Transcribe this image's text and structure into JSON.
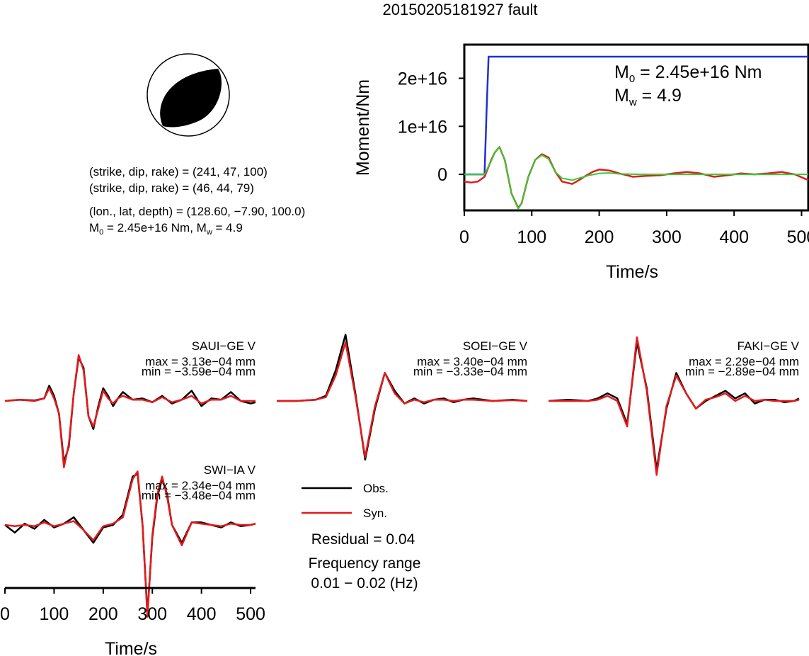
{
  "title": "20150205181927 fault",
  "mechanism": {
    "plane1": "(strike, dip, rake) = (241, 47, 100)",
    "plane2": "(strike, dip, rake) = (46, 44, 79)",
    "location": "(lon., lat, depth) = (128.60, −7.90, 100.0)",
    "m0_prefix": "M",
    "m0_sub": "0",
    "m0_mid": " = 2.45e+16 Nm, M",
    "mw_sub": "w",
    "mw_suffix": " = 4.9"
  },
  "moment_panel": {
    "m0_label": "M",
    "m0_sub": "0",
    "m0_value": " = 2.45e+16 Nm",
    "mw_label": "M",
    "mw_sub": "w",
    "mw_value": " = 4.9"
  },
  "legend": {
    "obs": "Obs.",
    "syn": "Syn.",
    "residual": "Residual = 0.04",
    "freq_title": "Frequency range",
    "freq_value": "0.01 − 0.02 (Hz)"
  },
  "colors": {
    "observed": "#000000",
    "synthetic": "#e41a1c",
    "stf": "#1f2fd6",
    "moment_synthetic": "#33cc33"
  },
  "chart_data": [
    {
      "type": "line",
      "name": "moment-rate",
      "xlabel": "Time/s",
      "ylabel": "Moment/Nm",
      "xlim": [
        0,
        510
      ],
      "ylim": [
        -7500000000000000.0,
        2.7e+16
      ],
      "xticks": [
        0,
        100,
        200,
        300,
        400,
        500
      ],
      "xtick_labels": [
        "0",
        "100",
        "200",
        "300",
        "400",
        "500"
      ],
      "yticks": [
        0,
        1e+16,
        2e+16
      ],
      "ytick_labels": [
        "0",
        "1e+16",
        "2e+16"
      ],
      "grid": false,
      "series": [
        {
          "role": "stf",
          "color": "#1f2fd6",
          "x": [
            0,
            30,
            33,
            36,
            40,
            510
          ],
          "y": [
            0,
            0,
            1.3e+16,
            2.45e+16,
            2.45e+16,
            2.45e+16
          ]
        },
        {
          "role": "observed",
          "color": "#e41a1c",
          "x": [
            0,
            10,
            20,
            30,
            40,
            45,
            52,
            60,
            70,
            80,
            85,
            95,
            105,
            115,
            125,
            135,
            145,
            160,
            170,
            180,
            190,
            200,
            215,
            230,
            250,
            270,
            290,
            310,
            330,
            350,
            370,
            390,
            410,
            430,
            450,
            470,
            490,
            510
          ],
          "y": [
            -1500000000000000.0,
            -1700000000000000.0,
            -1500000000000000.0,
            -500000000000000.0,
            3000000000000000.0,
            4500000000000000.0,
            5700000000000000.0,
            3000000000000000.0,
            -4000000000000000.0,
            -7000000000000000.0,
            -6000000000000000.0,
            -500000000000000.0,
            3000000000000000.0,
            4200000000000000.0,
            3500000000000000.0,
            500000000000000.0,
            -1500000000000000.0,
            -2000000000000000.0,
            -1200000000000000.0,
            -300000000000000.0,
            500000000000000.0,
            1000000000000000.0,
            800000000000000.0,
            200000000000000.0,
            -500000000000000.0,
            -300000000000000.0,
            -200000000000000.0,
            200000000000000.0,
            500000000000000.0,
            200000000000000.0,
            -500000000000000.0,
            -200000000000000.0,
            200000000000000.0,
            0.0,
            200000000000000.0,
            500000000000000.0,
            0.0,
            -1200000000000000.0
          ]
        },
        {
          "role": "synthetic",
          "color": "#33cc33",
          "x": [
            0,
            30,
            40,
            45,
            52,
            60,
            70,
            80,
            85,
            95,
            105,
            115,
            125,
            135,
            145,
            160,
            170,
            185,
            200,
            215,
            230,
            260,
            300,
            350,
            400,
            450,
            510
          ],
          "y": [
            0,
            0,
            2800000000000000.0,
            4500000000000000.0,
            5700000000000000.0,
            3000000000000000.0,
            -4000000000000000.0,
            -7200000000000000.0,
            -6000000000000000.0,
            -500000000000000.0,
            3000000000000000.0,
            4000000000000000.0,
            3200000000000000.0,
            500000000000000.0,
            -800000000000000.0,
            -1200000000000000.0,
            -800000000000000.0,
            -200000000000000.0,
            200000000000000.0,
            300000000000000.0,
            100000000000000.0,
            0.0,
            0.0,
            0.0,
            0.0,
            0.0,
            0.0
          ]
        }
      ]
    },
    {
      "type": "line",
      "name": "waveforms",
      "xlabel": "Time/s",
      "xlim": [
        0,
        510
      ],
      "xticks": [
        0,
        100,
        200,
        300,
        400,
        500
      ],
      "xtick_labels": [
        "0",
        "100",
        "200",
        "300",
        "400",
        "500"
      ],
      "stations": [
        {
          "name": "SAUI−GE V",
          "max": "max = 3.13e−04 mm",
          "min": "min = −3.59e−04 mm",
          "obs": {
            "t": [
              0,
              30,
              60,
              80,
              90,
              100,
              110,
              120,
              130,
              140,
              150,
              160,
              170,
              180,
              190,
              200,
              210,
              220,
              230,
              240,
              260,
              280,
              300,
              320,
              340,
              360,
              380,
              400,
              420,
              440,
              460,
              480,
              500,
              510
            ],
            "a": [
              0,
              0.05,
              0.02,
              0.1,
              0.6,
              0.2,
              -0.5,
              -2.4,
              -1.8,
              0.3,
              1.7,
              1.3,
              -0.6,
              -1.1,
              -0.2,
              0.5,
              0.2,
              -0.2,
              0.1,
              0.35,
              0.05,
              0.1,
              -0.05,
              0.2,
              -0.1,
              0.05,
              0.4,
              -0.2,
              0.1,
              0.05,
              0.35,
              0.0,
              -0.1,
              -0.05
            ]
          },
          "syn": {
            "t": [
              0,
              30,
              60,
              80,
              90,
              100,
              110,
              120,
              130,
              140,
              150,
              160,
              170,
              180,
              190,
              200,
              210,
              220,
              230,
              240,
              260,
              280,
              300,
              320,
              340,
              360,
              380,
              400,
              420,
              440,
              460,
              480,
              500,
              510
            ],
            "a": [
              0,
              0.05,
              0.0,
              0.1,
              0.5,
              0.1,
              -0.5,
              -2.6,
              -1.7,
              0.3,
              1.8,
              1.2,
              -0.6,
              -1.0,
              -0.3,
              0.4,
              0.1,
              -0.1,
              0.1,
              0.2,
              0.05,
              0.05,
              -0.05,
              0.15,
              -0.05,
              0.05,
              0.2,
              -0.1,
              0.05,
              0.05,
              0.2,
              0.0,
              0.0,
              0.0
            ]
          }
        },
        {
          "name": "SOEI−GE V",
          "max": "max = 3.40e−04 mm",
          "min": "min = −3.33e−04 mm",
          "obs": {
            "t": [
              0,
              40,
              80,
              100,
              120,
              140,
              160,
              180,
              200,
              220,
              240,
              260,
              280,
              300,
              320,
              340,
              360,
              380,
              400,
              440,
              480,
              510
            ],
            "a": [
              0,
              0.0,
              0.05,
              0.2,
              1.2,
              2.6,
              0.3,
              -2.3,
              -0.3,
              1.1,
              0.4,
              -0.1,
              0.1,
              -0.1,
              0.05,
              0.1,
              -0.05,
              0.05,
              0.1,
              0.0,
              0.05,
              0.0
            ]
          },
          "syn": {
            "t": [
              0,
              40,
              80,
              100,
              120,
              140,
              160,
              180,
              200,
              220,
              240,
              260,
              280,
              300,
              320,
              340,
              360,
              380,
              400,
              440,
              480,
              510
            ],
            "a": [
              0,
              0.0,
              0.05,
              0.15,
              1.0,
              2.3,
              0.2,
              -2.2,
              -0.2,
              1.1,
              0.3,
              -0.1,
              0.05,
              -0.05,
              0.05,
              0.05,
              0.0,
              0.05,
              0.05,
              0.0,
              0.03,
              0.0
            ]
          }
        },
        {
          "name": "FAKI−GE V",
          "max": "max = 2.29e−04 mm",
          "min": "min = −2.89e−04 mm",
          "obs": {
            "t": [
              0,
              40,
              80,
              100,
              120,
              140,
              160,
              180,
              200,
              220,
              240,
              260,
              280,
              300,
              320,
              340,
              360,
              380,
              400,
              420,
              440,
              460,
              480,
              500,
              510
            ],
            "a": [
              0,
              0.05,
              0.0,
              0.1,
              0.3,
              0.1,
              -0.9,
              2.3,
              0.5,
              -2.7,
              -0.3,
              1.1,
              0.3,
              -0.3,
              0.0,
              0.2,
              0.4,
              0.1,
              0.3,
              -0.1,
              0.05,
              0.05,
              -0.05,
              0.0,
              0.1
            ]
          },
          "syn": {
            "t": [
              0,
              40,
              80,
              100,
              120,
              140,
              160,
              180,
              200,
              220,
              240,
              260,
              280,
              300,
              320,
              340,
              360,
              380,
              400,
              420,
              440,
              460,
              480,
              500,
              510
            ],
            "a": [
              0,
              0.0,
              0.0,
              0.05,
              0.2,
              0.0,
              -1.0,
              2.5,
              0.4,
              -2.9,
              -0.2,
              1.0,
              0.3,
              -0.3,
              0.05,
              0.15,
              0.3,
              0.0,
              0.2,
              0.0,
              0.05,
              0.0,
              0.0,
              0.0,
              0.05
            ]
          }
        },
        {
          "name": "SWI−IA V",
          "max": "max = 2.34e−04 mm",
          "min": "min = −3.48e−04 mm",
          "obs": {
            "t": [
              0,
              20,
              40,
              60,
              80,
              100,
              120,
              140,
              160,
              180,
              200,
              220,
              240,
              260,
              270,
              280,
              290,
              300,
              310,
              320,
              330,
              340,
              360,
              380,
              400,
              420,
              440,
              460,
              480,
              500,
              510
            ],
            "a": [
              0,
              -0.3,
              0.05,
              -0.15,
              0.2,
              -0.1,
              0.05,
              0.3,
              -0.2,
              -0.7,
              -0.1,
              0.0,
              0.4,
              1.9,
              2.0,
              0.0,
              -3.5,
              -0.5,
              1.1,
              1.8,
              1.2,
              0.0,
              -0.7,
              0.1,
              0.1,
              0.0,
              -0.1,
              0.1,
              -0.05,
              0.0,
              0.05
            ]
          },
          "syn": {
            "t": [
              0,
              20,
              40,
              60,
              80,
              100,
              120,
              140,
              160,
              180,
              200,
              220,
              240,
              260,
              270,
              280,
              290,
              300,
              310,
              320,
              330,
              340,
              360,
              380,
              400,
              420,
              440,
              460,
              480,
              500,
              510
            ],
            "a": [
              0,
              -0.05,
              0.0,
              -0.05,
              0.1,
              -0.05,
              0.05,
              0.15,
              -0.2,
              -0.6,
              -0.05,
              0.05,
              0.3,
              1.8,
              2.1,
              0.0,
              -3.6,
              -0.4,
              1.2,
              1.9,
              1.1,
              0.0,
              -0.8,
              0.1,
              0.05,
              0.0,
              -0.05,
              0.05,
              0.0,
              0.0,
              0.05
            ]
          }
        }
      ]
    }
  ]
}
